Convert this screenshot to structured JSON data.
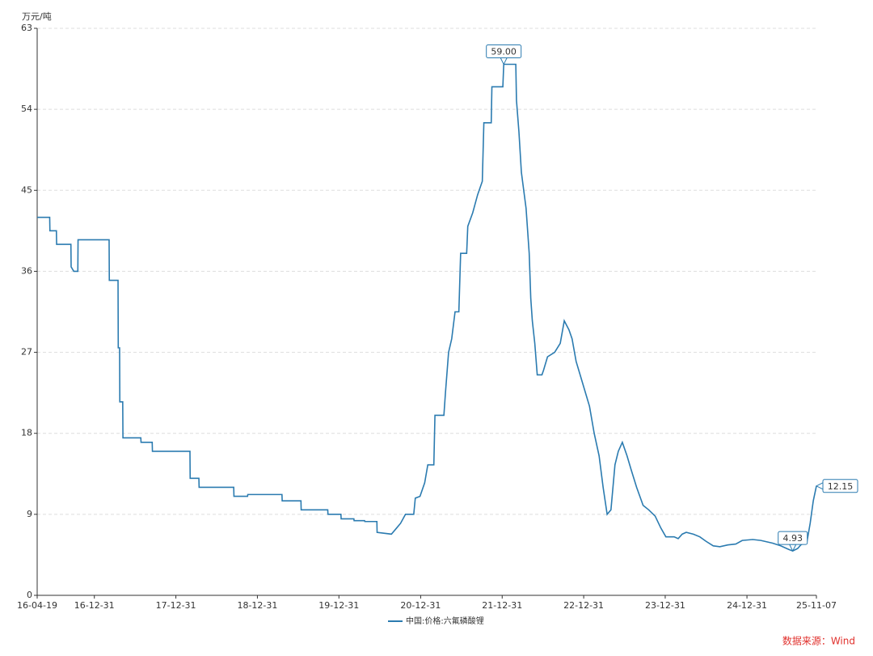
{
  "chart_data": {
    "type": "line",
    "y_label": "万元/吨",
    "ylim": [
      0,
      63
    ],
    "yticks": [
      0,
      9,
      18,
      27,
      36,
      45,
      54,
      63
    ],
    "xlim": [
      "16-04-19",
      "25-11-07"
    ],
    "xticks": [
      "16-04-19",
      "16-12-31",
      "17-12-31",
      "18-12-31",
      "19-12-31",
      "20-12-31",
      "21-12-31",
      "22-12-31",
      "23-12-31",
      "24-12-31",
      "25-11-07"
    ],
    "grid": true,
    "x": [
      "16-04-19",
      "16-06-14",
      "16-06-15",
      "16-07-14",
      "16-07-15",
      "16-09-17",
      "16-09-18",
      "16-09-30",
      "16-10-18",
      "16-10-19",
      "17-03-07",
      "17-03-08",
      "17-04-16",
      "17-04-17",
      "17-04-23",
      "17-04-24",
      "17-05-07",
      "17-05-08",
      "17-07-27",
      "17-07-28",
      "17-09-16",
      "17-09-17",
      "18-03-04",
      "18-03-05",
      "18-04-13",
      "18-04-14",
      "18-09-16",
      "18-09-17",
      "18-11-17",
      "18-11-18",
      "19-04-20",
      "19-04-21",
      "19-07-14",
      "19-07-15",
      "19-11-11",
      "19-11-12",
      "20-01-09",
      "20-01-10",
      "20-03-07",
      "20-03-08",
      "20-04-24",
      "20-04-25",
      "20-06-18",
      "20-06-19",
      "20-08-22",
      "20-09-15",
      "20-10-02",
      "20-10-24",
      "20-11-30",
      "20-12-07",
      "20-12-28",
      "21-01-18",
      "21-02-01",
      "21-02-28",
      "21-03-05",
      "21-04-14",
      "21-04-21",
      "21-05-05",
      "21-05-19",
      "21-06-03",
      "21-06-20",
      "21-06-28",
      "21-07-25",
      "21-07-30",
      "21-08-21",
      "21-09-12",
      "21-10-03",
      "21-10-10",
      "21-11-12",
      "21-11-15",
      "22-01-03",
      "22-01-07",
      "22-03-02",
      "22-03-05",
      "22-03-16",
      "22-03-27",
      "22-04-17",
      "22-05-01",
      "22-05-08",
      "22-05-15",
      "22-05-26",
      "22-06-06",
      "22-06-27",
      "22-07-04",
      "22-07-22",
      "22-08-23",
      "22-09-17",
      "22-10-05",
      "22-10-26",
      "22-11-09",
      "22-11-27",
      "22-12-15",
      "23-01-08",
      "23-01-26",
      "23-02-16",
      "23-03-10",
      "23-03-28",
      "23-04-15",
      "23-05-02",
      "23-05-20",
      "23-06-04",
      "23-06-22",
      "23-07-13",
      "23-07-31",
      "23-08-25",
      "23-09-23",
      "23-10-18",
      "23-11-16",
      "23-12-11",
      "24-01-03",
      "24-02-09",
      "24-02-27",
      "24-03-16",
      "24-04-03",
      "24-05-05",
      "24-06-03",
      "24-07-01",
      "24-08-02",
      "24-08-31",
      "24-10-06",
      "24-11-11",
      "24-12-10",
      "25-01-26",
      "25-03-03",
      "25-04-25",
      "25-05-31",
      "25-07-06",
      "25-07-24",
      "25-08-15",
      "25-08-29",
      "25-09-26",
      "25-10-10",
      "25-10-24",
      "25-11-07"
    ],
    "series": [
      {
        "name": "中国:价格:六氟磷酸锂",
        "color": "#2b7bb0",
        "values": [
          42,
          42,
          40.5,
          40.5,
          39,
          39,
          36.5,
          36,
          36,
          39.5,
          39.5,
          35,
          35,
          27.5,
          27.5,
          21.5,
          21.5,
          17.5,
          17.5,
          17,
          17,
          16,
          16,
          13,
          13,
          12,
          12,
          11,
          11,
          11.2,
          11.2,
          10.5,
          10.5,
          9.5,
          9.5,
          9,
          9,
          8.5,
          8.5,
          8.3,
          8.3,
          8.2,
          8.2,
          7,
          6.8,
          7.5,
          8,
          9,
          9,
          10.8,
          11,
          12.5,
          14.5,
          14.5,
          20,
          20,
          22.5,
          27,
          28.5,
          31.5,
          31.5,
          38,
          38,
          41,
          42.5,
          44.5,
          46,
          52.5,
          52.5,
          56.5,
          56.5,
          59,
          59,
          55,
          51.5,
          47,
          43,
          38,
          33,
          30.5,
          28,
          24.5,
          24.5,
          25,
          26.5,
          27,
          28,
          30.5,
          29.5,
          28.5,
          26,
          24.5,
          22.5,
          21,
          18,
          15.5,
          12,
          9,
          9.5,
          14.5,
          16,
          17,
          15.5,
          14,
          12,
          10,
          9.5,
          8.8,
          7.5,
          6.5,
          6.5,
          6.3,
          6.8,
          7,
          6.8,
          6.5,
          6,
          5.5,
          5.4,
          5.6,
          5.7,
          6.1,
          6.2,
          6.1,
          5.8,
          5.5,
          5.1,
          4.93,
          5.2,
          5.6,
          6,
          8,
          10.5,
          12.15
        ]
      }
    ],
    "annotations": [
      {
        "x": "22-01-07",
        "value": 59,
        "label": "59.00",
        "position": "top"
      },
      {
        "x": "25-07-24",
        "value": 4.93,
        "label": "4.93",
        "position": "top"
      },
      {
        "x": "25-11-07",
        "value": 12.15,
        "label": "12.15",
        "position": "right"
      }
    ],
    "source": "数据来源：Wind"
  }
}
